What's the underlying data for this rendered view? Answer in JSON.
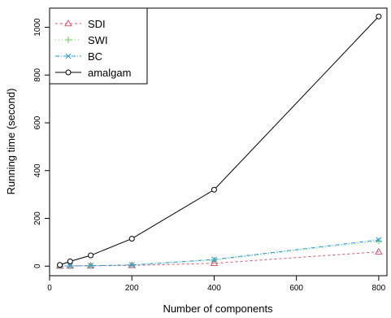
{
  "chart_data": {
    "type": "line",
    "xlabel": "Number of components",
    "ylabel": "Running time (second)",
    "xlim": [
      0,
      820
    ],
    "ylim": [
      -40,
      1080
    ],
    "x_ticks": [
      "0",
      "200",
      "400",
      "600",
      "800"
    ],
    "y_ticks": [
      "0",
      "200",
      "400",
      "600",
      "800",
      "1000"
    ],
    "x": [
      25,
      50,
      100,
      200,
      400,
      800
    ],
    "grid": false,
    "legend_position": "top-left",
    "series": [
      {
        "name": "SDI",
        "color": "#DF536B",
        "marker": "triangle",
        "dash": "3,3",
        "values": [
          0.5,
          1,
          1.5,
          3,
          12,
          60
        ]
      },
      {
        "name": "SWI",
        "color": "#61D04F",
        "marker": "plus",
        "dash": "1,3",
        "values": [
          0.5,
          1,
          2,
          5,
          25,
          105
        ]
      },
      {
        "name": "BC",
        "color": "#2297E6",
        "marker": "cross",
        "dash": "5,2,1,2",
        "values": [
          0.5,
          1,
          2,
          5,
          28,
          110
        ]
      },
      {
        "name": "amalgam",
        "color": "#000000",
        "marker": "circle",
        "dash": "",
        "values": [
          5,
          20,
          45,
          115,
          320,
          1045
        ]
      }
    ]
  }
}
